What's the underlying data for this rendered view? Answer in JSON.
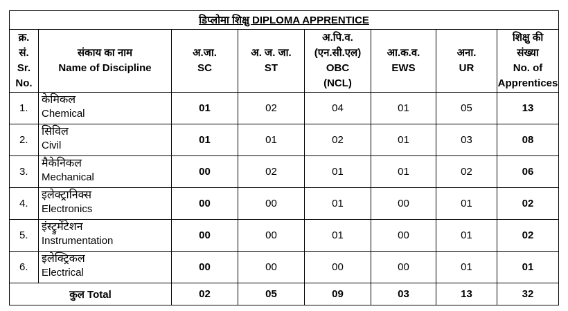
{
  "title": "डिप्लोमा शिक्षु DIPLOMA APPRENTICE",
  "headers": {
    "sr": [
      "क्र.",
      "सं.",
      "Sr.",
      "No."
    ],
    "discipline": [
      "संकाय का नाम",
      "Name of Discipline"
    ],
    "sc": [
      "अ.जा.",
      "SC"
    ],
    "st": [
      "अ. ज. जा.",
      "ST"
    ],
    "obc": [
      "अ.पि.व.",
      "(एन.सी.एल)",
      "OBC",
      "(NCL)"
    ],
    "ews": [
      "आ.क.व.",
      "EWS"
    ],
    "ur": [
      "अना.",
      "UR"
    ],
    "total": [
      "शिक्षु की",
      "संख्या",
      "No. of",
      "Apprentices"
    ]
  },
  "rows": [
    {
      "sr": "1.",
      "name_hi": "केमिकल",
      "name_en": "Chemical",
      "sc": "01",
      "st": "02",
      "obc": "04",
      "ews": "01",
      "ur": "05",
      "total": "13"
    },
    {
      "sr": "2.",
      "name_hi": "सिविल",
      "name_en": "Civil",
      "sc": "01",
      "st": "01",
      "obc": "02",
      "ews": "01",
      "ur": "03",
      "total": "08"
    },
    {
      "sr": "3.",
      "name_hi": "मैकेनिकल",
      "name_en": "Mechanical",
      "sc": "00",
      "st": "02",
      "obc": "01",
      "ews": "01",
      "ur": "02",
      "total": "06"
    },
    {
      "sr": "4.",
      "name_hi": "इलेक्ट्रानिक्स",
      "name_en": "Electronics",
      "sc": "00",
      "st": "00",
      "obc": "01",
      "ews": "00",
      "ur": "01",
      "total": "02"
    },
    {
      "sr": "5.",
      "name_hi": "इंस्ट्रुमेंटेशन",
      "name_en": "Instrumentation",
      "sc": "00",
      "st": "00",
      "obc": "01",
      "ews": "00",
      "ur": "01",
      "total": "02"
    },
    {
      "sr": "6.",
      "name_hi": "इलेक्ट्रिकल",
      "name_en": "Electrical",
      "sc": "00",
      "st": "00",
      "obc": "00",
      "ews": "00",
      "ur": "01",
      "total": "01"
    }
  ],
  "totals": {
    "label": "कुल Total",
    "sc": "02",
    "st": "05",
    "obc": "09",
    "ews": "03",
    "ur": "13",
    "total": "32"
  }
}
